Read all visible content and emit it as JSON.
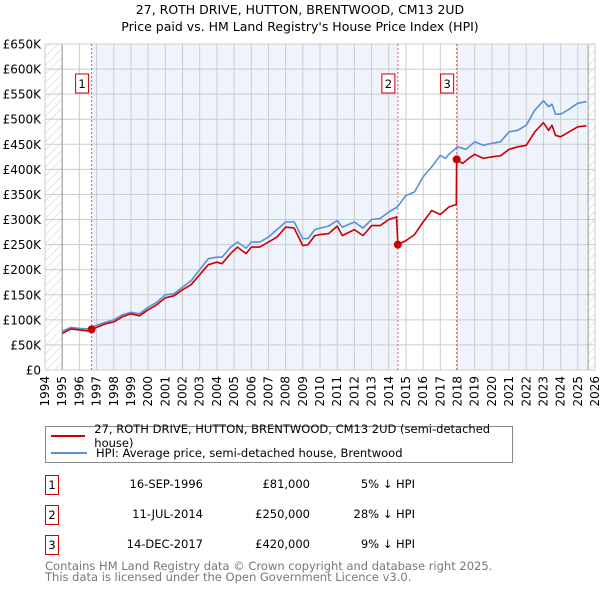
{
  "title_line1": "27, ROTH DRIVE, HUTTON, BRENTWOOD, CM13 2UD",
  "title_line2": "Price paid vs. HM Land Registry's House Price Index (HPI)",
  "chart_data": {
    "type": "line",
    "title": "27, ROTH DRIVE, HUTTON, BRENTWOOD, CM13 2UD — Price paid vs. HM Land Registry's House Price Index (HPI)",
    "xlim": [
      1994,
      2026
    ],
    "ylim": [
      0,
      650000
    ],
    "x_ticks": [
      "1994",
      "1995",
      "1996",
      "1997",
      "1998",
      "1999",
      "2000",
      "2001",
      "2002",
      "2003",
      "2004",
      "2005",
      "2006",
      "2007",
      "2008",
      "2009",
      "2010",
      "2011",
      "2012",
      "2013",
      "2014",
      "2015",
      "2016",
      "2017",
      "2018",
      "2019",
      "2020",
      "2021",
      "2022",
      "2023",
      "2024",
      "2025",
      "2026"
    ],
    "y_ticks": [
      {
        "value": 0,
        "label": "£0"
      },
      {
        "value": 50000,
        "label": "£50K"
      },
      {
        "value": 100000,
        "label": "£100K"
      },
      {
        "value": 150000,
        "label": "£150K"
      },
      {
        "value": 200000,
        "label": "£200K"
      },
      {
        "value": 250000,
        "label": "£250K"
      },
      {
        "value": 300000,
        "label": "£300K"
      },
      {
        "value": 350000,
        "label": "£350K"
      },
      {
        "value": 400000,
        "label": "£400K"
      },
      {
        "value": 450000,
        "label": "£450K"
      },
      {
        "value": 500000,
        "label": "£500K"
      },
      {
        "value": 550000,
        "label": "£550K"
      },
      {
        "value": 600000,
        "label": "£600K"
      },
      {
        "value": 650000,
        "label": "£650K"
      }
    ],
    "data_range": [
      1995,
      2025.6
    ],
    "grid": true,
    "series": [
      {
        "name": "27, ROTH DRIVE, HUTTON, BRENTWOOD, CM13 2UD (semi-detached house)",
        "color": "#cc0000",
        "points": [
          [
            1995,
            73000
          ],
          [
            1995.5,
            82000
          ],
          [
            1996,
            80000
          ],
          [
            1996.5,
            78000
          ],
          [
            1996.71,
            81000
          ],
          [
            1997.5,
            92000
          ],
          [
            1998,
            96000
          ],
          [
            1998.5,
            106000
          ],
          [
            1999,
            112000
          ],
          [
            1999.5,
            108000
          ],
          [
            2000,
            120000
          ],
          [
            2000.5,
            130000
          ],
          [
            2001,
            144000
          ],
          [
            2001.5,
            148000
          ],
          [
            2002,
            160000
          ],
          [
            2002.5,
            170000
          ],
          [
            2003,
            190000
          ],
          [
            2003.5,
            210000
          ],
          [
            2004,
            215000
          ],
          [
            2004.3,
            212000
          ],
          [
            2004.8,
            232000
          ],
          [
            2005.2,
            245000
          ],
          [
            2005.7,
            232000
          ],
          [
            2006,
            245000
          ],
          [
            2006.5,
            245000
          ],
          [
            2007,
            255000
          ],
          [
            2007.5,
            265000
          ],
          [
            2008,
            285000
          ],
          [
            2008.5,
            283000
          ],
          [
            2009,
            248000
          ],
          [
            2009.3,
            250000
          ],
          [
            2009.7,
            268000
          ],
          [
            2010,
            270000
          ],
          [
            2010.5,
            272000
          ],
          [
            2011,
            287000
          ],
          [
            2011.3,
            268000
          ],
          [
            2012,
            280000
          ],
          [
            2012.5,
            268000
          ],
          [
            2013,
            288000
          ],
          [
            2013.5,
            288000
          ],
          [
            2014,
            300000
          ],
          [
            2014.45,
            305000
          ],
          [
            2014.53,
            250000
          ],
          [
            2015,
            258000
          ],
          [
            2015.5,
            270000
          ],
          [
            2016,
            295000
          ],
          [
            2016.5,
            318000
          ],
          [
            2017,
            310000
          ],
          [
            2017.5,
            325000
          ],
          [
            2017.93,
            330000
          ],
          [
            2017.95,
            420000
          ],
          [
            2018.3,
            412000
          ],
          [
            2018.7,
            423000
          ],
          [
            2019,
            430000
          ],
          [
            2019.5,
            422000
          ],
          [
            2020,
            425000
          ],
          [
            2020.5,
            427000
          ],
          [
            2021,
            440000
          ],
          [
            2021.5,
            445000
          ],
          [
            2022,
            448000
          ],
          [
            2022.5,
            475000
          ],
          [
            2023,
            493000
          ],
          [
            2023.3,
            478000
          ],
          [
            2023.5,
            488000
          ],
          [
            2023.7,
            468000
          ],
          [
            2024,
            465000
          ],
          [
            2024.5,
            475000
          ],
          [
            2025,
            485000
          ],
          [
            2025.5,
            487000
          ]
        ]
      },
      {
        "name": "HPI: Average price, semi-detached house, Brentwood",
        "color": "#5b8fd6",
        "points": [
          [
            1995,
            77000
          ],
          [
            1995.5,
            85000
          ],
          [
            1996,
            83000
          ],
          [
            1996.5,
            82000
          ],
          [
            1996.71,
            86000
          ],
          [
            1997.5,
            95000
          ],
          [
            1998,
            100000
          ],
          [
            1998.5,
            110000
          ],
          [
            1999,
            115000
          ],
          [
            1999.5,
            112000
          ],
          [
            2000,
            125000
          ],
          [
            2000.5,
            135000
          ],
          [
            2001,
            150000
          ],
          [
            2001.5,
            152000
          ],
          [
            2002,
            165000
          ],
          [
            2002.5,
            178000
          ],
          [
            2003,
            200000
          ],
          [
            2003.5,
            222000
          ],
          [
            2004,
            225000
          ],
          [
            2004.3,
            225000
          ],
          [
            2004.8,
            245000
          ],
          [
            2005.2,
            255000
          ],
          [
            2005.7,
            243000
          ],
          [
            2006,
            255000
          ],
          [
            2006.5,
            255000
          ],
          [
            2007,
            265000
          ],
          [
            2007.5,
            280000
          ],
          [
            2008,
            295000
          ],
          [
            2008.5,
            295000
          ],
          [
            2009,
            262000
          ],
          [
            2009.3,
            262000
          ],
          [
            2009.7,
            280000
          ],
          [
            2010,
            283000
          ],
          [
            2010.5,
            287000
          ],
          [
            2011,
            298000
          ],
          [
            2011.3,
            285000
          ],
          [
            2012,
            295000
          ],
          [
            2012.5,
            283000
          ],
          [
            2013,
            300000
          ],
          [
            2013.5,
            302000
          ],
          [
            2014,
            315000
          ],
          [
            2014.5,
            325000
          ],
          [
            2015,
            348000
          ],
          [
            2015.5,
            355000
          ],
          [
            2016,
            385000
          ],
          [
            2016.5,
            405000
          ],
          [
            2017,
            428000
          ],
          [
            2017.3,
            422000
          ],
          [
            2017.5,
            430000
          ],
          [
            2018,
            445000
          ],
          [
            2018.5,
            440000
          ],
          [
            2019,
            455000
          ],
          [
            2019.5,
            448000
          ],
          [
            2020,
            452000
          ],
          [
            2020.5,
            455000
          ],
          [
            2021,
            475000
          ],
          [
            2021.5,
            478000
          ],
          [
            2022,
            488000
          ],
          [
            2022.5,
            518000
          ],
          [
            2023,
            537000
          ],
          [
            2023.3,
            525000
          ],
          [
            2023.5,
            530000
          ],
          [
            2023.7,
            510000
          ],
          [
            2024,
            510000
          ],
          [
            2024.5,
            520000
          ],
          [
            2025,
            532000
          ],
          [
            2025.5,
            535000
          ]
        ]
      }
    ],
    "sales": [
      {
        "label": "1",
        "year": 1996.71,
        "price": 81000,
        "date": "16-SEP-1996",
        "price_text": "£81,000",
        "hpi_diff": "5% ↓ HPI"
      },
      {
        "label": "2",
        "year": 2014.53,
        "price": 250000,
        "date": "11-JUL-2014",
        "price_text": "£250,000",
        "hpi_diff": "28% ↓ HPI"
      },
      {
        "label": "3",
        "year": 2017.95,
        "price": 420000,
        "date": "14-DEC-2017",
        "price_text": "£420,000",
        "hpi_diff": "9% ↓ HPI"
      }
    ]
  },
  "legend": {
    "property": "27, ROTH DRIVE, HUTTON, BRENTWOOD, CM13 2UD (semi-detached house)",
    "hpi": "HPI: Average price, semi-detached house, Brentwood"
  },
  "colors": {
    "property": "#cc0000",
    "hpi": "#5b8fd6",
    "shade": "#eef3fc"
  },
  "footer": {
    "line1": "Contains HM Land Registry data © Crown copyright and database right 2025.",
    "line2": "This data is licensed under the Open Government Licence v3.0."
  }
}
